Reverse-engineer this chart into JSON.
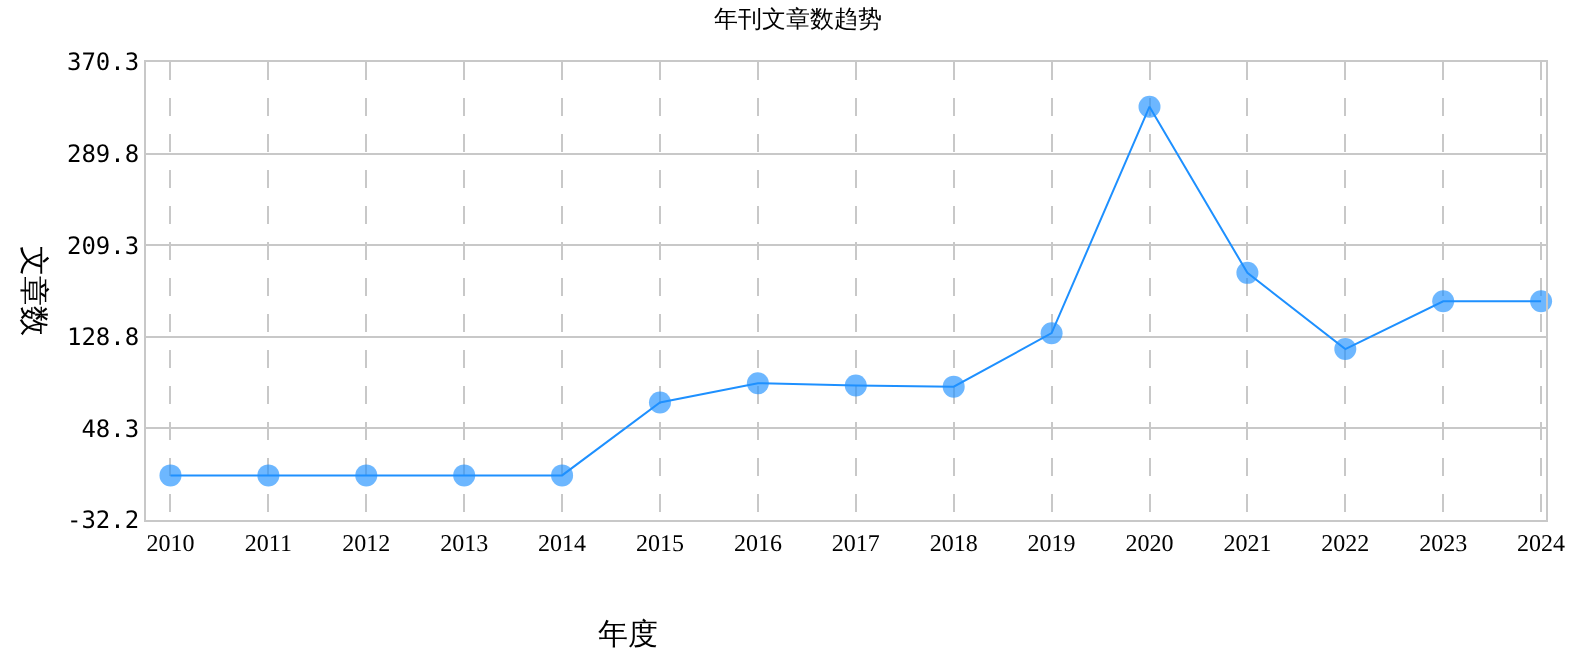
{
  "chart_data": {
    "type": "line",
    "title": "年刊文章数趋势",
    "xlabel": "年度",
    "ylabel": "文章数",
    "categories": [
      "2010",
      "2011",
      "2012",
      "2013",
      "2014",
      "2015",
      "2016",
      "2017",
      "2018",
      "2019",
      "2020",
      "2021",
      "2022",
      "2023",
      "2024"
    ],
    "series": [
      {
        "color": "#1e90ff",
        "values": [
          7,
          7,
          7,
          7,
          7,
          71,
          88,
          86,
          85,
          132,
          331,
          185,
          118,
          160,
          160
        ]
      }
    ],
    "ylim": [
      -32.2,
      370.3
    ],
    "yticks": [
      -32.2,
      48.3,
      128.8,
      209.3,
      289.8,
      370.3
    ],
    "grid": true,
    "marker": "circle",
    "line_style": "solid"
  }
}
